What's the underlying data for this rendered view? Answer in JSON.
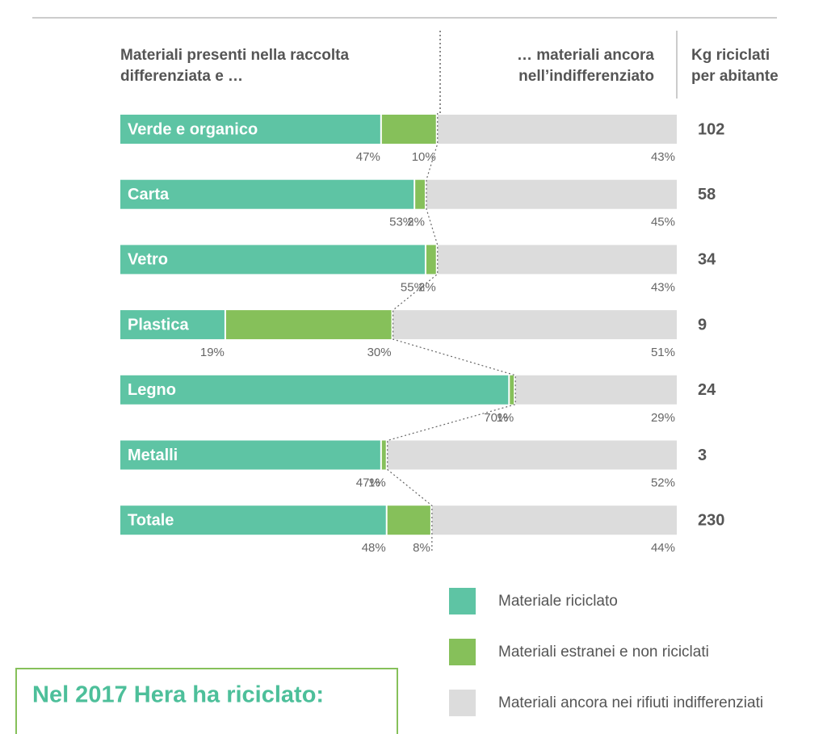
{
  "chart_data": {
    "type": "stacked-bar-horizontal",
    "left_header": "Materiali presenti nella raccolta differenziata e …",
    "right_header": "… materiali ancora nell’indifferenziato",
    "kg_header": "Kg riciclati per abitante",
    "categories": [
      "Verde e organico",
      "Carta",
      "Vetro",
      "Plastica",
      "Legno",
      "Metalli",
      "Totale"
    ],
    "series": [
      {
        "name": "Materiale riciclato",
        "color": "#5ec4a4",
        "values": [
          47,
          53,
          55,
          19,
          70,
          47,
          48
        ],
        "value_labels": [
          "47%",
          "53%",
          "55%",
          "19%",
          "70%",
          "47%",
          "48%"
        ]
      },
      {
        "name": "Materiali estranei e non riciclati",
        "color": "#86c05a",
        "values": [
          10,
          2,
          2,
          30,
          1,
          1,
          8
        ],
        "value_labels": [
          "10%",
          "2%",
          "2%",
          "30%",
          "1%",
          "1%",
          "8%"
        ]
      },
      {
        "name": "Materiali ancora nei rifiuti indifferenziati",
        "color": "#dcdcdc",
        "values": [
          43,
          45,
          43,
          51,
          29,
          52,
          44
        ],
        "value_labels": [
          "43%",
          "45%",
          "43%",
          "51%",
          "29%",
          "52%",
          "44%"
        ]
      }
    ],
    "kg_per_capita": [
      102,
      58,
      34,
      9,
      24,
      3,
      230
    ],
    "box_title": "Nel 2017 Hera ha riciclato:"
  }
}
